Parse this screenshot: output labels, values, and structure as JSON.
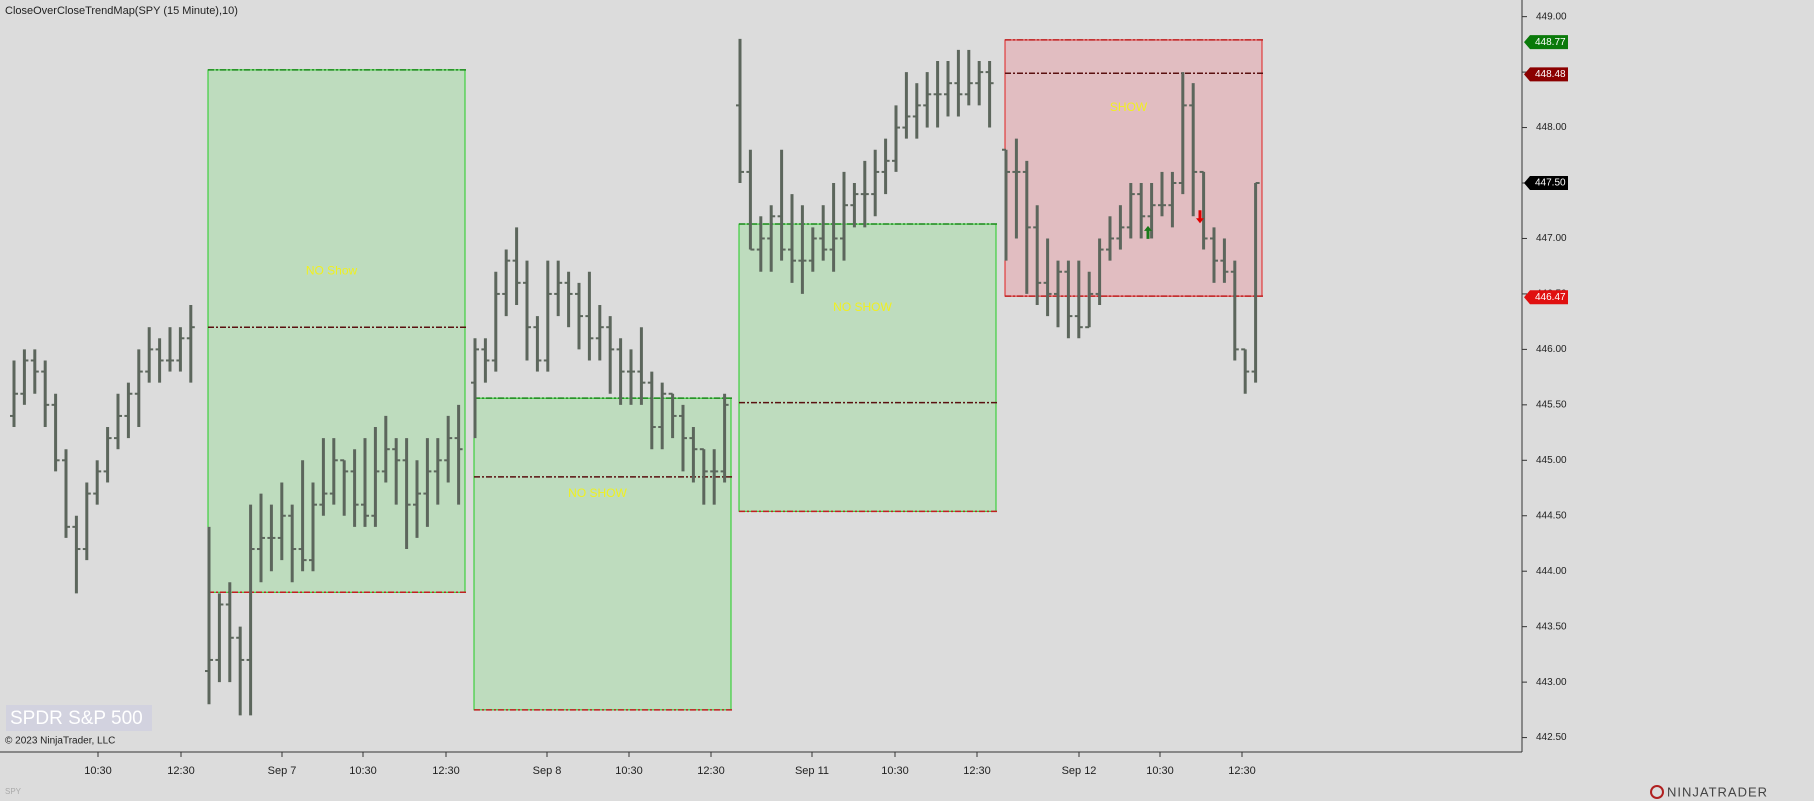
{
  "chart_data": {
    "type": "ohlc",
    "title": "CloseOverCloseTrendMap(SPY (15 Minute),10)",
    "watermark": "SPDR S&P 500",
    "copyright": "© 2023 NinjaTrader, LLC",
    "symbol": "SPY",
    "brand": "NINJATRADER",
    "color": "#5c665c",
    "ylim": [
      442.37,
      449.15
    ],
    "yticks": [
      {
        "value": 442.5,
        "label": "442.50"
      },
      {
        "value": 443,
        "label": "443.00"
      },
      {
        "value": 443.5,
        "label": "443.50"
      },
      {
        "value": 444,
        "label": "444.00"
      },
      {
        "value": 444.5,
        "label": "444.50"
      },
      {
        "value": 445,
        "label": "445.00"
      },
      {
        "value": 445.5,
        "label": "445.50"
      },
      {
        "value": 446,
        "label": "446.00"
      },
      {
        "value": 446.5,
        "label": "446.50"
      },
      {
        "value": 447,
        "label": "447.00"
      },
      {
        "value": 447.5,
        "label": "447.50"
      },
      {
        "value": 448,
        "label": "448.00"
      },
      {
        "value": 448.5,
        "label": "448.50"
      },
      {
        "value": 449,
        "label": "449.00"
      }
    ],
    "x_labels": [
      "10:30",
      "12:30",
      "Sep 7",
      "10:30",
      "12:30",
      "Sep 8",
      "10:30",
      "12:30",
      "Sep 11",
      "10:30",
      "12:30",
      "Sep 12",
      "10:30",
      "12:30"
    ],
    "sessions": [
      {
        "bars": [
          [
            445.4,
            445.9,
            445.3,
            445.6
          ],
          [
            445.6,
            446.0,
            445.5,
            445.9
          ],
          [
            445.9,
            446.0,
            445.6,
            445.8
          ],
          [
            445.8,
            445.9,
            445.3,
            445.5
          ],
          [
            445.5,
            445.6,
            444.9,
            445.0
          ],
          [
            445.0,
            445.1,
            444.3,
            444.4
          ],
          [
            444.4,
            444.5,
            443.8,
            444.2
          ],
          [
            444.2,
            444.8,
            444.1,
            444.7
          ],
          [
            444.7,
            445.0,
            444.6,
            444.9
          ],
          [
            444.9,
            445.3,
            444.8,
            445.2
          ],
          [
            445.2,
            445.6,
            445.1,
            445.4
          ],
          [
            445.4,
            445.7,
            445.2,
            445.6
          ],
          [
            445.6,
            446.0,
            445.3,
            445.8
          ],
          [
            445.8,
            446.2,
            445.7,
            446.0
          ],
          [
            446.0,
            446.1,
            445.7,
            445.9
          ],
          [
            445.9,
            446.2,
            445.8,
            445.9
          ],
          [
            445.9,
            446.2,
            445.8,
            446.1
          ],
          [
            446.1,
            446.4,
            445.7,
            446.2
          ]
        ]
      },
      {
        "bars": [
          [
            443.1,
            444.4,
            442.8,
            443.2
          ],
          [
            443.2,
            443.8,
            443.0,
            443.7
          ],
          [
            443.7,
            443.9,
            443.0,
            443.4
          ],
          [
            443.4,
            443.5,
            442.7,
            443.2
          ],
          [
            443.2,
            444.6,
            442.7,
            444.2
          ],
          [
            444.2,
            444.7,
            443.9,
            444.3
          ],
          [
            444.3,
            444.6,
            444.0,
            444.3
          ],
          [
            444.3,
            444.8,
            444.1,
            444.5
          ],
          [
            444.5,
            444.6,
            443.9,
            444.2
          ],
          [
            444.2,
            445.0,
            444.0,
            444.1
          ],
          [
            444.1,
            444.8,
            444.0,
            444.6
          ],
          [
            444.6,
            445.2,
            444.5,
            444.7
          ],
          [
            444.7,
            445.2,
            444.6,
            445.0
          ],
          [
            445.0,
            445.0,
            444.5,
            444.9
          ],
          [
            444.9,
            445.1,
            444.4,
            444.6
          ],
          [
            444.6,
            445.2,
            444.4,
            444.5
          ],
          [
            444.5,
            445.3,
            444.4,
            444.9
          ],
          [
            444.9,
            445.4,
            444.8,
            445.1
          ],
          [
            445.1,
            445.2,
            444.6,
            445.0
          ],
          [
            445.0,
            445.2,
            444.2,
            444.6
          ],
          [
            444.6,
            445.0,
            444.3,
            444.7
          ],
          [
            444.7,
            445.2,
            444.4,
            444.9
          ],
          [
            444.9,
            445.2,
            444.6,
            445.0
          ],
          [
            445.0,
            445.4,
            444.8,
            445.2
          ],
          [
            445.2,
            445.5,
            444.6,
            445.1
          ]
        ]
      },
      {
        "bars": [
          [
            445.7,
            446.1,
            445.2,
            446.0
          ],
          [
            446.0,
            446.1,
            445.7,
            445.9
          ],
          [
            445.9,
            446.7,
            445.8,
            446.5
          ],
          [
            446.5,
            446.9,
            446.3,
            446.8
          ],
          [
            446.8,
            447.1,
            446.4,
            446.6
          ],
          [
            446.6,
            446.8,
            445.9,
            446.2
          ],
          [
            446.2,
            446.3,
            445.8,
            445.9
          ],
          [
            445.9,
            446.8,
            445.8,
            446.5
          ],
          [
            446.5,
            446.8,
            446.3,
            446.6
          ],
          [
            446.6,
            446.7,
            446.2,
            446.5
          ],
          [
            446.5,
            446.6,
            446.0,
            446.3
          ],
          [
            446.3,
            446.7,
            445.9,
            446.1
          ],
          [
            446.1,
            446.4,
            445.9,
            446.2
          ],
          [
            446.2,
            446.3,
            445.6,
            446.0
          ],
          [
            446.0,
            446.1,
            445.5,
            445.8
          ],
          [
            445.8,
            446.0,
            445.5,
            445.8
          ],
          [
            445.8,
            446.2,
            445.5,
            445.7
          ],
          [
            445.7,
            445.8,
            445.1,
            445.3
          ],
          [
            445.3,
            445.7,
            445.1,
            445.6
          ],
          [
            445.6,
            445.6,
            445.2,
            445.4
          ],
          [
            445.4,
            445.5,
            444.9,
            445.2
          ],
          [
            445.2,
            445.3,
            444.8,
            445.1
          ],
          [
            445.1,
            445.1,
            444.6,
            444.9
          ],
          [
            444.9,
            445.1,
            444.6,
            444.9
          ],
          [
            444.9,
            445.6,
            444.8,
            445.5
          ]
        ]
      },
      {
        "bars": [
          [
            448.2,
            448.8,
            447.5,
            447.6
          ],
          [
            447.6,
            447.8,
            446.9,
            446.9
          ],
          [
            446.9,
            447.2,
            446.7,
            447.0
          ],
          [
            447.0,
            447.3,
            446.7,
            447.2
          ],
          [
            447.2,
            447.8,
            446.8,
            446.9
          ],
          [
            446.9,
            447.4,
            446.6,
            446.8
          ],
          [
            446.8,
            447.3,
            446.5,
            446.8
          ],
          [
            446.8,
            447.1,
            446.7,
            447.0
          ],
          [
            447.0,
            447.3,
            446.8,
            446.9
          ],
          [
            446.9,
            447.5,
            446.7,
            447.0
          ],
          [
            447.0,
            447.6,
            446.8,
            447.3
          ],
          [
            447.3,
            447.5,
            447.1,
            447.4
          ],
          [
            447.4,
            447.7,
            447.1,
            447.4
          ],
          [
            447.4,
            447.8,
            447.2,
            447.6
          ],
          [
            447.6,
            447.9,
            447.4,
            447.7
          ],
          [
            447.7,
            448.2,
            447.6,
            448.0
          ],
          [
            448.0,
            448.5,
            447.9,
            448.1
          ],
          [
            448.1,
            448.4,
            447.9,
            448.2
          ],
          [
            448.2,
            448.5,
            448.0,
            448.3
          ],
          [
            448.3,
            448.6,
            448.0,
            448.3
          ],
          [
            448.3,
            448.6,
            448.1,
            448.4
          ],
          [
            448.4,
            448.7,
            448.1,
            448.3
          ],
          [
            448.3,
            448.7,
            448.2,
            448.4
          ],
          [
            448.4,
            448.6,
            448.2,
            448.5
          ],
          [
            448.5,
            448.6,
            448.0,
            448.4
          ]
        ]
      },
      {
        "bars": [
          [
            447.8,
            447.8,
            446.8,
            447.6
          ],
          [
            447.6,
            447.9,
            447.0,
            447.6
          ],
          [
            447.6,
            447.7,
            446.5,
            447.1
          ],
          [
            447.1,
            447.3,
            446.4,
            446.6
          ],
          [
            446.6,
            447.0,
            446.3,
            446.5
          ],
          [
            446.5,
            446.8,
            446.2,
            446.7
          ],
          [
            446.7,
            446.8,
            446.1,
            446.3
          ],
          [
            446.3,
            446.8,
            446.1,
            446.2
          ],
          [
            446.2,
            446.7,
            446.2,
            446.5
          ],
          [
            446.5,
            447.0,
            446.4,
            446.9
          ],
          [
            446.9,
            447.2,
            446.8,
            447.0
          ],
          [
            447.0,
            447.3,
            446.9,
            447.1
          ],
          [
            447.1,
            447.5,
            447.0,
            447.4
          ],
          [
            447.4,
            447.5,
            447.0,
            447.2
          ],
          [
            447.2,
            447.5,
            447.0,
            447.3
          ],
          [
            447.3,
            447.6,
            447.2,
            447.3
          ],
          [
            447.3,
            447.6,
            447.1,
            447.5
          ],
          [
            447.5,
            448.5,
            447.4,
            448.2
          ],
          [
            448.2,
            448.4,
            447.2,
            447.6
          ],
          [
            447.6,
            447.6,
            446.9,
            447.0
          ],
          [
            447.0,
            447.1,
            446.6,
            446.8
          ],
          [
            446.8,
            447.0,
            446.6,
            446.7
          ],
          [
            446.7,
            446.8,
            445.9,
            446.0
          ],
          [
            446.0,
            446.0,
            445.6,
            445.8
          ],
          [
            445.8,
            447.5,
            445.7,
            447.5
          ]
        ]
      }
    ],
    "boxes": [
      {
        "label": "NO Show",
        "top": 448.52,
        "bottom": 443.81,
        "mid": 446.2,
        "color": "green"
      },
      {
        "label": "NO SHOW",
        "top": 445.56,
        "bottom": 442.75,
        "mid": 444.85,
        "color": "green"
      },
      {
        "label": "NO SHOW",
        "top": 447.13,
        "bottom": 444.54,
        "mid": 445.52,
        "color": "green"
      },
      {
        "label": "SHOW",
        "top": 448.79,
        "bottom": 446.48,
        "mid": 448.49,
        "color": "red"
      }
    ],
    "arrows": [
      {
        "value": 447.05,
        "direction": "up",
        "color": "#1a7a1a"
      },
      {
        "value": 447.2,
        "direction": "down",
        "color": "#e00000"
      }
    ],
    "price_markers": [
      {
        "value": 448.77,
        "color": "#0a7a0a"
      },
      {
        "value": 448.48,
        "color": "#8b0000"
      },
      {
        "value": 447.5,
        "label": "447.50",
        "color": "#000000"
      },
      {
        "value": 446.47,
        "color": "#e01010"
      }
    ]
  }
}
